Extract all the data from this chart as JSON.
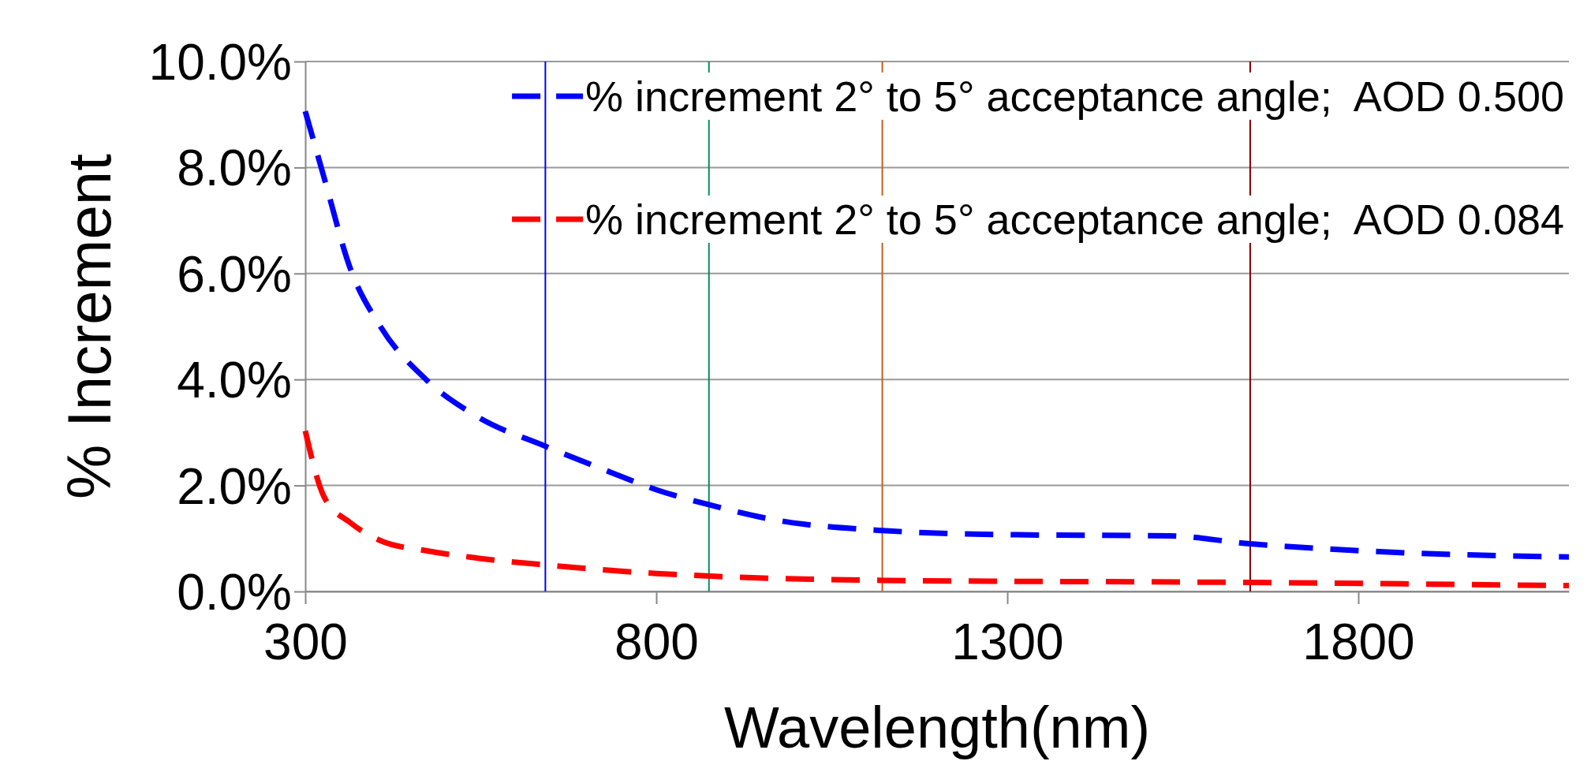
{
  "chart_data": {
    "type": "line",
    "xlabel": "Wavelength(nm)",
    "ylabel": "% Increment",
    "xlim": [
      300,
      2100
    ],
    "xticks": [
      300,
      800,
      1300,
      1800
    ],
    "ylim": [
      0,
      10
    ],
    "yticks": [
      {
        "value": 0,
        "label": "0.0%"
      },
      {
        "value": 2,
        "label": "2.0%"
      },
      {
        "value": 4,
        "label": "4.0%"
      },
      {
        "value": 6,
        "label": "6.0%"
      },
      {
        "value": 8,
        "label": "8.0%"
      },
      {
        "value": 10,
        "label": "10.0%"
      }
    ],
    "grid": "y",
    "legend": "top right",
    "line_style": "dashed",
    "marker": "none",
    "series": [
      {
        "name": "% increment 2° to 5° acceptance angle;  AOD 0.500",
        "color": "#0000ff",
        "x": [
          300,
          327,
          364,
          407,
          472,
          545,
          642,
          733,
          800,
          877,
          965,
          1122,
          1313,
          1530,
          1646,
          1800,
          2100
        ],
        "values": [
          9.06,
          7.8,
          6.1,
          5.0,
          4.0,
          3.3,
          2.74,
          2.26,
          1.92,
          1.63,
          1.36,
          1.15,
          1.07,
          1.05,
          0.9,
          0.77,
          0.65
        ]
      },
      {
        "name": "% increment 2° to 5° acceptance angle;  AOD 0.084",
        "color": "#ff0000",
        "x": [
          300,
          327,
          364,
          407,
          472,
          545,
          642,
          800,
          877,
          1122,
          1646,
          2100
        ],
        "values": [
          3.03,
          1.78,
          1.3,
          0.96,
          0.77,
          0.63,
          0.5,
          0.34,
          0.29,
          0.21,
          0.17,
          0.11
        ]
      }
    ],
    "ref_lines": [
      {
        "axis": "x",
        "value": 642,
        "color": "#0000ff"
      },
      {
        "axis": "x",
        "value": 875,
        "color": "#00905a"
      },
      {
        "axis": "x",
        "value": 1122,
        "color": "#c06020"
      },
      {
        "axis": "x",
        "value": 1646,
        "color": "#800000"
      }
    ]
  }
}
